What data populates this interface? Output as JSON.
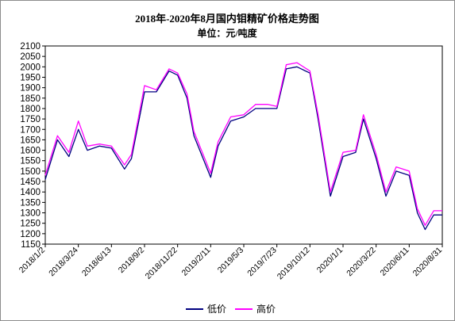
{
  "chart_data": {
    "type": "line",
    "title": "2018年-2020年8月国内钼精矿价格走势图",
    "subtitle": "单位：元/吨度",
    "ylim": [
      1150,
      2100
    ],
    "yticks": [
      1150,
      1200,
      1250,
      1300,
      1350,
      1400,
      1450,
      1500,
      1550,
      1600,
      1650,
      1700,
      1750,
      1800,
      1850,
      1900,
      1950,
      2000,
      2050,
      2100
    ],
    "x": [
      "2018/1/2",
      "2018/2/1",
      "2018/3/1",
      "2018/3/24",
      "2018/4/15",
      "2018/5/15",
      "2018/6/13",
      "2018/7/15",
      "2018/8/1",
      "2018/9/2",
      "2018/10/1",
      "2018/11/1",
      "2018/11/22",
      "2018/12/15",
      "2019/1/1",
      "2019/2/11",
      "2019/3/1",
      "2019/4/1",
      "2019/5/3",
      "2019/6/1",
      "2019/7/1",
      "2019/7/23",
      "2019/8/15",
      "2019/9/10",
      "2019/10/12",
      "2019/11/1",
      "2019/12/1",
      "2020/1/1",
      "2020/2/1",
      "2020/2/20",
      "2020/3/22",
      "2020/4/15",
      "2020/5/10",
      "2020/6/11",
      "2020/7/1",
      "2020/7/20",
      "2020/8/10",
      "2020/8/31"
    ],
    "xtick_labels": [
      "2018/1/2",
      "2018/3/24",
      "2018/6/13",
      "2018/9/2",
      "2018/11/22",
      "2019/2/11",
      "2019/5/3",
      "2019/7/23",
      "2019/10/12",
      "2020/1/1",
      "2020/3/22",
      "2020/6/11",
      "2020/8/31"
    ],
    "series": [
      {
        "name": "低价",
        "color": "#000080",
        "values": [
          1460,
          1650,
          1570,
          1700,
          1600,
          1620,
          1610,
          1510,
          1560,
          1880,
          1880,
          1980,
          1960,
          1850,
          1670,
          1470,
          1620,
          1740,
          1760,
          1800,
          1800,
          1800,
          1990,
          2000,
          1970,
          1750,
          1380,
          1570,
          1590,
          1750,
          1560,
          1380,
          1500,
          1480,
          1300,
          1220,
          1290,
          1290
        ]
      },
      {
        "name": "高价",
        "color": "#ff00ff",
        "values": [
          1480,
          1670,
          1590,
          1740,
          1620,
          1630,
          1620,
          1530,
          1580,
          1910,
          1890,
          1990,
          1970,
          1870,
          1690,
          1490,
          1640,
          1760,
          1770,
          1820,
          1820,
          1810,
          2010,
          2020,
          1980,
          1770,
          1400,
          1590,
          1600,
          1770,
          1580,
          1400,
          1520,
          1500,
          1320,
          1240,
          1310,
          1310
        ]
      }
    ],
    "legend": {
      "position": "bottom"
    },
    "grid": false
  }
}
